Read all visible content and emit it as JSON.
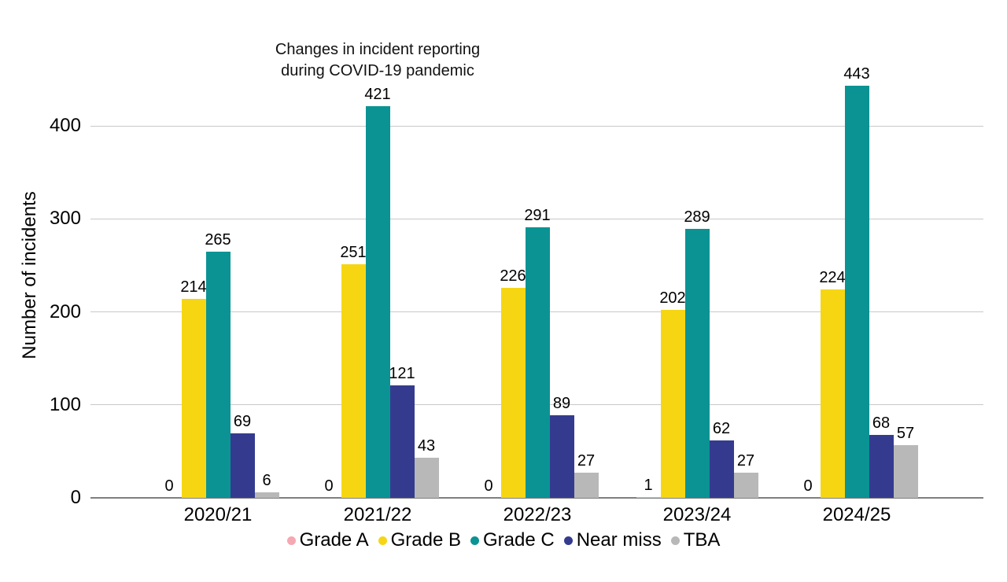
{
  "chart_data": {
    "type": "bar",
    "title": "",
    "annotation_lines": [
      "Changes in incident reporting",
      "during COVID-19 pandemic"
    ],
    "xlabel": "",
    "ylabel": "Number of incidents",
    "categories": [
      "2020/21",
      "2021/22",
      "2022/23",
      "2023/24",
      "2024/25"
    ],
    "series": [
      {
        "name": "Grade A",
        "color": "#f5a8b1",
        "values": [
          0,
          0,
          0,
          1,
          0
        ]
      },
      {
        "name": "Grade B",
        "color": "#f6d612",
        "values": [
          214,
          251,
          226,
          202,
          224
        ]
      },
      {
        "name": "Grade C",
        "color": "#0b9394",
        "values": [
          265,
          421,
          291,
          289,
          443
        ]
      },
      {
        "name": "Near miss",
        "color": "#343b8f",
        "values": [
          69,
          121,
          89,
          62,
          68
        ]
      },
      {
        "name": "TBA",
        "color": "#b8b8b8",
        "values": [
          6,
          43,
          27,
          27,
          57
        ]
      }
    ],
    "yticks": [
      0,
      100,
      200,
      300,
      400
    ],
    "ylim": [
      0,
      460
    ],
    "grid": true,
    "legend_position": "bottom",
    "colors": {
      "gridline": "#c9c9c9",
      "axis_line": "#7f7f7f",
      "text": "#000000",
      "background": "#ffffff"
    }
  }
}
